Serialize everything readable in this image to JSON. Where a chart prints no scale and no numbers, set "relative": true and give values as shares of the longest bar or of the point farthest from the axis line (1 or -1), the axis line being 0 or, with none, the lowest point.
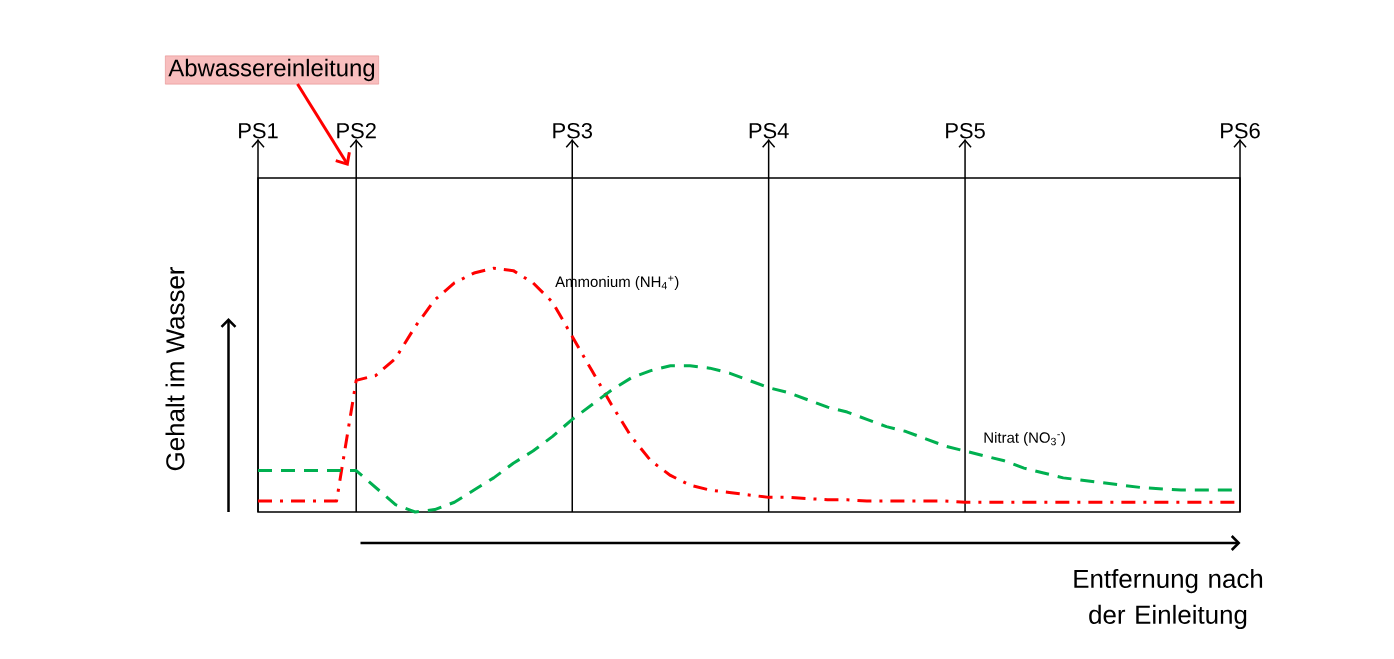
{
  "chart_data": {
    "type": "line",
    "relative": true,
    "tick_labels": "x",
    "grid": "x",
    "categories": [
      "PS1",
      null,
      null,
      null,
      null,
      "PS2",
      null,
      null,
      null,
      null,
      null,
      null,
      null,
      null,
      null,
      null,
      "PS3",
      null,
      null,
      null,
      null,
      null,
      null,
      null,
      null,
      null,
      "PS4",
      null,
      null,
      null,
      null,
      null,
      null,
      null,
      null,
      null,
      "PS5",
      null,
      null,
      null,
      null,
      null,
      null,
      null,
      null,
      null,
      null,
      null,
      null,
      null,
      "PS6"
    ],
    "xlabel": "Entfernung nach der Einleitung",
    "ylabel": "Gehalt im Wasser",
    "annotations": [
      "Abwassereinleitung"
    ],
    "series": [
      {
        "name": "Ammonium (NH$_{4}$$^{+}$)",
        "color": "#ff0000",
        "line_style": "dashdot",
        "values": [
          0.045,
          0.045,
          0.045,
          0.045,
          0.045,
          0.54,
          0.56,
          0.63,
          0.76,
          0.87,
          0.94,
          0.98,
          1,
          0.99,
          0.94,
          0.86,
          0.72,
          0.58,
          0.44,
          0.31,
          0.21,
          0.15,
          0.11,
          0.09,
          0.08,
          0.07,
          0.06,
          0.06,
          0.055,
          0.05,
          0.05,
          0.045,
          0.045,
          0.045,
          0.045,
          0.045,
          0.04,
          0.04,
          0.04,
          0.04,
          0.04,
          0.04,
          0.04,
          0.04,
          0.04,
          0.04,
          0.04,
          0.04,
          0.04,
          0.04,
          0.04
        ]
      },
      {
        "name": "Nitrat (NO$_{3}$$^{-}$)",
        "color": "#00b050",
        "line_style": "dashed",
        "values": [
          0.17,
          0.17,
          0.17,
          0.17,
          0.17,
          0.17,
          0.1,
          0.03,
          0,
          0.01,
          0.04,
          0.09,
          0.14,
          0.2,
          0.25,
          0.31,
          0.38,
          0.44,
          0.5,
          0.55,
          0.58,
          0.6,
          0.6,
          0.59,
          0.57,
          0.54,
          0.51,
          0.49,
          0.46,
          0.43,
          0.41,
          0.38,
          0.35,
          0.33,
          0.3,
          0.27,
          0.25,
          0.23,
          0.21,
          0.18,
          0.16,
          0.14,
          0.13,
          0.12,
          0.11,
          0.1,
          0.095,
          0.09,
          0.09,
          0.09,
          0.09
        ]
      }
    ]
  }
}
